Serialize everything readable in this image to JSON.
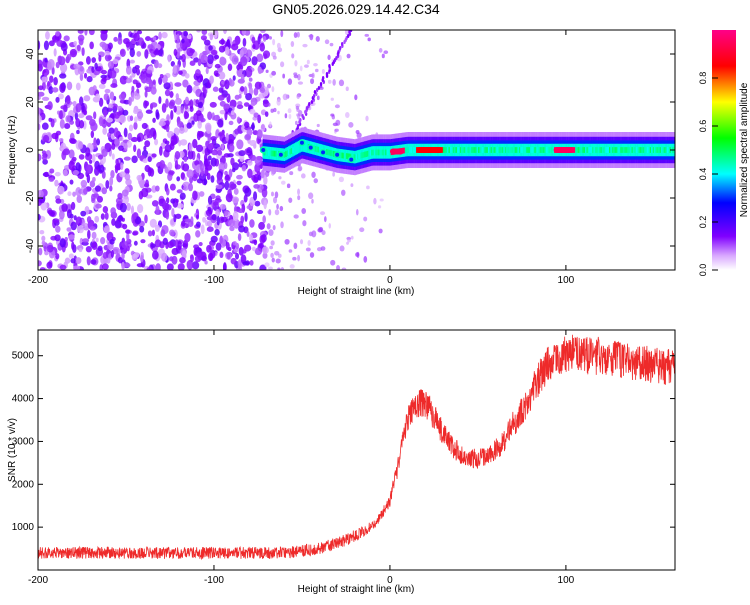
{
  "title": "GN05.2026.029.14.42.C34",
  "colors": {
    "snr_line": "#ee2a2a",
    "axis": "#000000",
    "colorbar": [
      "#ffffff",
      "#d9a8ff",
      "#8000ff",
      "#0000ff",
      "#00ffff",
      "#00ff00",
      "#ffff00",
      "#ff0000",
      "#ff0088"
    ]
  },
  "chart_data": [
    {
      "id": "spectrogram",
      "type": "heatmap",
      "title": "",
      "xlabel": "Height of straight line (km)",
      "ylabel": "Frequency (Hz)",
      "xlim": [
        -200,
        162
      ],
      "ylim": [
        -50,
        50
      ],
      "x_ticks": [
        -200,
        -100,
        0,
        100
      ],
      "y_ticks": [
        -40,
        -20,
        0,
        20,
        40
      ],
      "colorbar": {
        "label": "Normalized spectral amplitude",
        "range": [
          0,
          1
        ],
        "ticks": [
          0.0,
          0.2,
          0.4,
          0.6,
          0.8
        ]
      },
      "noise_region_x": [
        -200,
        -70
      ],
      "track": {
        "center_freq_hz": [
          {
            "x": -72,
            "y": -1
          },
          {
            "x": -60,
            "y": -2
          },
          {
            "x": -50,
            "y": 2
          },
          {
            "x": -40,
            "y": 0
          },
          {
            "x": -30,
            "y": -2
          },
          {
            "x": -20,
            "y": -3
          },
          {
            "x": -10,
            "y": -1
          },
          {
            "x": 0,
            "y": -1
          },
          {
            "x": 10,
            "y": 0
          },
          {
            "x": 20,
            "y": 0
          },
          {
            "x": 60,
            "y": 0
          },
          {
            "x": 100,
            "y": 0
          },
          {
            "x": 162,
            "y": 0
          }
        ],
        "peak_amplitude_segments": [
          {
            "x_start": 0,
            "x_end": 8,
            "amplitude": 0.95
          },
          {
            "x_start": 15,
            "x_end": 30,
            "amplitude": 0.85
          },
          {
            "x_start": 93,
            "x_end": 105,
            "amplitude": 0.95
          }
        ],
        "diagonal_streak": {
          "from": {
            "x": -60,
            "y": 0
          },
          "to": {
            "x": -22,
            "y": 50
          }
        }
      }
    },
    {
      "id": "snr",
      "type": "line",
      "title": "",
      "xlabel": "Height of straight line (km)",
      "ylabel": "SNR (10 * v/v)",
      "xlim": [
        -200,
        162
      ],
      "ylim": [
        0,
        5600
      ],
      "x_ticks": [
        -200,
        -100,
        0,
        100
      ],
      "y_ticks": [
        1000,
        2000,
        3000,
        4000,
        5000
      ],
      "series": [
        {
          "name": "SNR",
          "x": [
            -200,
            -150,
            -100,
            -60,
            -40,
            -25,
            -15,
            -8,
            0,
            5,
            10,
            15,
            20,
            25,
            30,
            35,
            40,
            45,
            50,
            55,
            60,
            65,
            70,
            75,
            80,
            85,
            90,
            95,
            100,
            105,
            110,
            120,
            130,
            140,
            150,
            162
          ],
          "y": [
            400,
            400,
            400,
            400,
            500,
            700,
            900,
            1100,
            1600,
            2500,
            3500,
            3900,
            3900,
            3600,
            3200,
            2900,
            2700,
            2600,
            2600,
            2650,
            2800,
            3000,
            3400,
            3700,
            4100,
            4500,
            4800,
            5000,
            5000,
            5100,
            5000,
            5000,
            4900,
            4800,
            4800,
            4700
          ]
        }
      ]
    }
  ]
}
